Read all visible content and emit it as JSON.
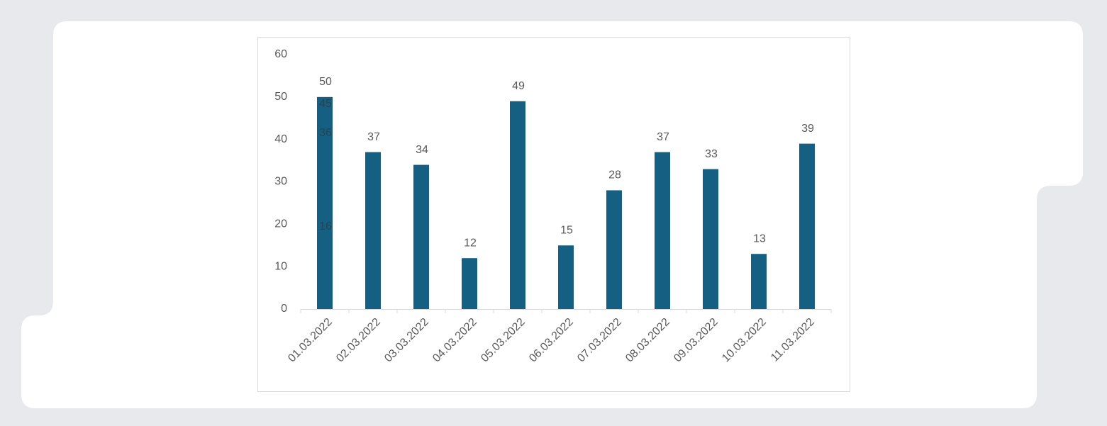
{
  "chart_data": {
    "type": "bar",
    "categories": [
      "01.03.2022",
      "02.03.2022",
      "03.03.2022",
      "04.03.2022",
      "05.03.2022",
      "06.03.2022",
      "07.03.2022",
      "08.03.2022",
      "09.03.2022",
      "10.03.2022",
      "11.03.2022"
    ],
    "values": [
      50,
      37,
      34,
      12,
      49,
      15,
      28,
      37,
      33,
      13,
      39
    ],
    "color": "#155f82",
    "ylim": [
      0,
      60
    ],
    "yticks": [
      0,
      10,
      20,
      30,
      40,
      50,
      60
    ],
    "grid": false,
    "annotations": [
      "45",
      "36",
      "16"
    ]
  }
}
